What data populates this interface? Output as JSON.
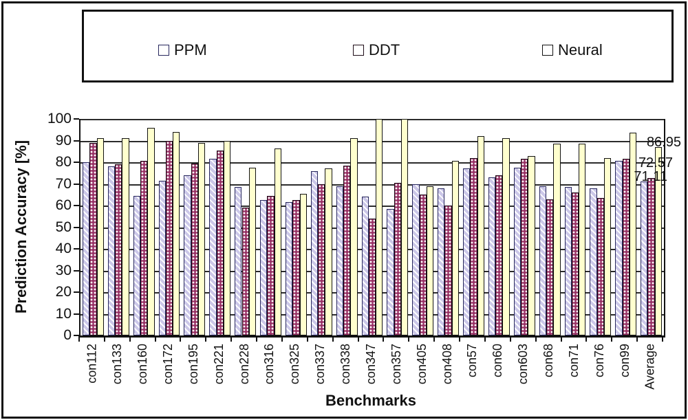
{
  "chart_data": {
    "type": "bar",
    "title": "",
    "xlabel": "Benchmarks",
    "ylabel": "Prediction Accuracy [%]",
    "ylim": [
      0,
      100
    ],
    "yticks": [
      0,
      10,
      20,
      30,
      40,
      50,
      60,
      70,
      80,
      90,
      100
    ],
    "grid": true,
    "legend_position": "top",
    "plot_background": "#ffffff",
    "categories": [
      "con112",
      "con133",
      "con160",
      "con172",
      "con195",
      "con221",
      "con228",
      "con316",
      "con325",
      "con337",
      "con338",
      "con347",
      "con357",
      "con405",
      "con408",
      "con57",
      "con60",
      "con603",
      "con68",
      "con71",
      "con76",
      "con99",
      "Average"
    ],
    "series": [
      {
        "name": "PPM",
        "color": "#cbc7e8",
        "pattern": "diagonal-hatch",
        "values": [
          80,
          78,
          64.5,
          71.5,
          74,
          81.5,
          68.5,
          62.5,
          61.5,
          76,
          69,
          64,
          58.5,
          70,
          68,
          77,
          73,
          77.5,
          69,
          68.5,
          68,
          80.5,
          71.11
        ]
      },
      {
        "name": "DDT",
        "color": "#993366",
        "pattern": "white-dots",
        "values": [
          89,
          79,
          80.5,
          90,
          79.5,
          85.5,
          59,
          64.5,
          62.5,
          70,
          78.5,
          54,
          70.5,
          65,
          60,
          82,
          74,
          81.5,
          63,
          66,
          63.5,
          81.5,
          72.57
        ]
      },
      {
        "name": "Neural",
        "color": "#ffffce",
        "pattern": "solid",
        "values": [
          91,
          91,
          96,
          94,
          89,
          90,
          77.5,
          86.5,
          65.5,
          77,
          91,
          100,
          100,
          69,
          80.5,
          92,
          91,
          83,
          88.5,
          88.5,
          82,
          93.5,
          86.95
        ]
      }
    ],
    "annotations": [
      {
        "text": "86.95",
        "series": "Neural",
        "category": "Average"
      },
      {
        "text": "72.57",
        "series": "DDT",
        "category": "Average"
      },
      {
        "text": "71.11",
        "series": "PPM",
        "category": "Average"
      }
    ]
  }
}
